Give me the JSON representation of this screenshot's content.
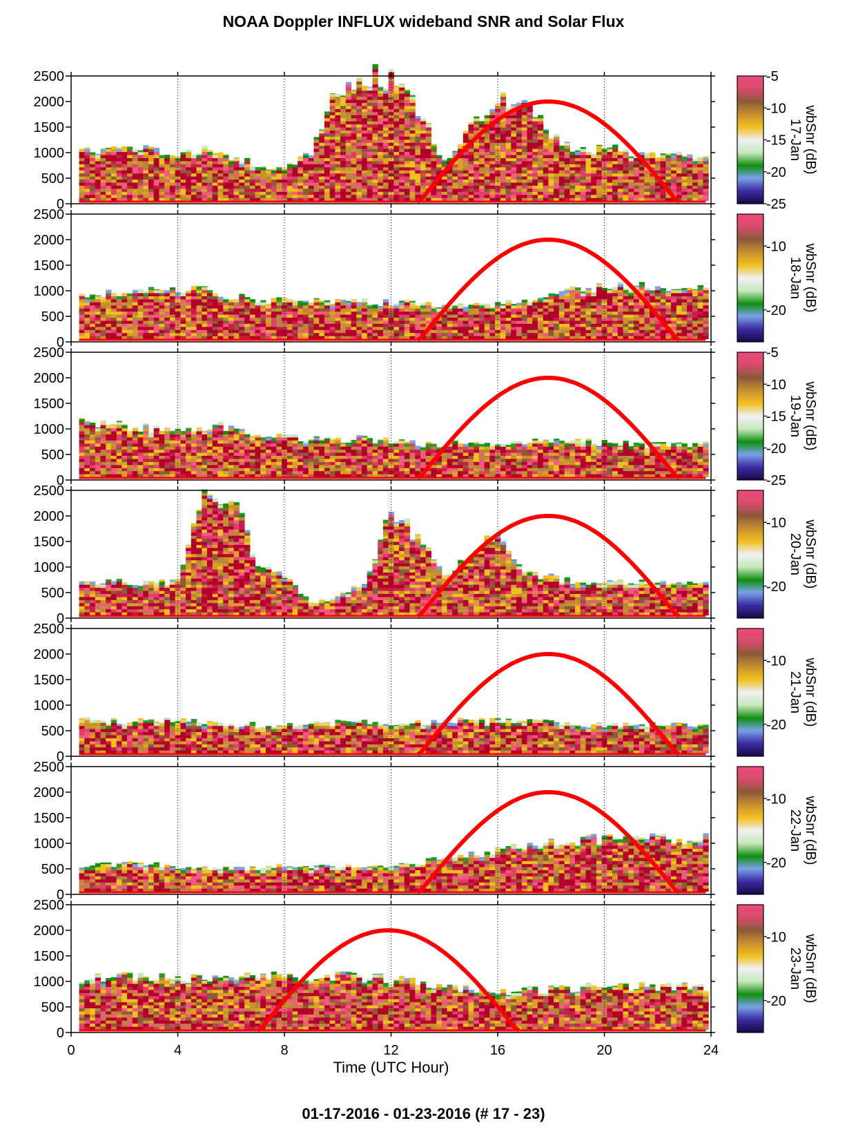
{
  "title": "NOAA Doppler INFLUX wideband SNR and Solar Flux",
  "footer": "01-17-2016 - 01-23-2016   (# 17 - 23)",
  "colors": {
    "solar": "#ff0000",
    "snr_strong": "#b3002a",
    "colorbar_stops": [
      "#1a0a4a",
      "#3a2aa0",
      "#7aa0e8",
      "#109010",
      "#c8e8c0",
      "#f0f0f0",
      "#f0c020",
      "#c89030",
      "#8a5a3a",
      "#d84a6a",
      "#f04a78"
    ]
  },
  "chart_data": [
    {
      "type": "heatmap",
      "day_label": "17-Jan",
      "colorbar_title": "wbSnr (dB)",
      "colorbar_ticks": [
        -5,
        -10,
        -15,
        -20,
        -25
      ],
      "x_ticks": [
        0,
        4,
        8,
        12,
        16,
        20,
        24
      ],
      "y_ticks": [
        0,
        500,
        1000,
        1500,
        2000,
        2500
      ],
      "xlim": [
        0,
        24
      ],
      "ylim": [
        0,
        2500
      ],
      "solar_peak_hour": 17.9,
      "solar_start": 13.0,
      "solar_end": 22.8,
      "solar_peak": 2000,
      "snr_top": [
        [
          0.3,
          1050
        ],
        [
          1,
          1000
        ],
        [
          2,
          1080
        ],
        [
          3,
          1050
        ],
        [
          4,
          1000
        ],
        [
          5,
          1100
        ],
        [
          6,
          950
        ],
        [
          7,
          750
        ],
        [
          8,
          680
        ],
        [
          9,
          1000
        ],
        [
          10,
          2300
        ],
        [
          11,
          2500
        ],
        [
          12,
          2500
        ],
        [
          13,
          1900
        ],
        [
          14,
          800
        ],
        [
          15,
          1500
        ],
        [
          16,
          2000
        ],
        [
          17,
          2100
        ],
        [
          18,
          1300
        ],
        [
          19,
          1000
        ],
        [
          20,
          1100
        ],
        [
          21,
          1000
        ],
        [
          22,
          980
        ],
        [
          23.8,
          900
        ]
      ]
    },
    {
      "type": "heatmap",
      "day_label": "18-Jan",
      "colorbar_title": "wbSnr (dB)",
      "colorbar_ticks": [
        -10,
        -20
      ],
      "x_ticks": [
        0,
        4,
        8,
        12,
        16,
        20,
        24
      ],
      "y_ticks": [
        0,
        500,
        1000,
        1500,
        2000,
        2500
      ],
      "xlim": [
        0,
        24
      ],
      "ylim": [
        0,
        2500
      ],
      "solar_peak_hour": 17.9,
      "solar_start": 13.0,
      "solar_end": 22.8,
      "solar_peak": 2000,
      "snr_top": [
        [
          0.3,
          950
        ],
        [
          2,
          950
        ],
        [
          3,
          1050
        ],
        [
          5,
          1000
        ],
        [
          7,
          800
        ],
        [
          9,
          800
        ],
        [
          11,
          780
        ],
        [
          13,
          750
        ],
        [
          15,
          700
        ],
        [
          17,
          800
        ],
        [
          19,
          1050
        ],
        [
          21,
          1100
        ],
        [
          23.8,
          1050
        ]
      ]
    },
    {
      "type": "heatmap",
      "day_label": "19-Jan",
      "colorbar_title": "wbSnr (dB)",
      "colorbar_ticks": [
        -5,
        -10,
        -15,
        -20,
        -25
      ],
      "x_ticks": [
        0,
        4,
        8,
        12,
        16,
        20,
        24
      ],
      "y_ticks": [
        0,
        500,
        1000,
        1500,
        2000,
        2500
      ],
      "xlim": [
        0,
        24
      ],
      "ylim": [
        0,
        2500
      ],
      "solar_peak_hour": 17.9,
      "solar_start": 13.0,
      "solar_end": 22.8,
      "solar_peak": 2000,
      "snr_top": [
        [
          0.3,
          1150
        ],
        [
          2,
          1050
        ],
        [
          4,
          1000
        ],
        [
          6,
          1050
        ],
        [
          7,
          900
        ],
        [
          9,
          800
        ],
        [
          11,
          800
        ],
        [
          13,
          700
        ],
        [
          15,
          700
        ],
        [
          17,
          750
        ],
        [
          19,
          750
        ],
        [
          21,
          700
        ],
        [
          23.8,
          700
        ]
      ]
    },
    {
      "type": "heatmap",
      "day_label": "20-Jan",
      "colorbar_title": "wbSnr (dB)",
      "colorbar_ticks": [
        -10,
        -20
      ],
      "x_ticks": [
        0,
        4,
        8,
        12,
        16,
        20,
        24
      ],
      "y_ticks": [
        0,
        500,
        1000,
        1500,
        2000,
        2500
      ],
      "xlim": [
        0,
        24
      ],
      "ylim": [
        0,
        2500
      ],
      "solar_peak_hour": 17.9,
      "solar_start": 13.0,
      "solar_end": 22.8,
      "solar_peak": 2000,
      "snr_top": [
        [
          0.3,
          700
        ],
        [
          2,
          700
        ],
        [
          4,
          700
        ],
        [
          5,
          2500
        ],
        [
          6,
          2400
        ],
        [
          7,
          1100
        ],
        [
          8,
          800
        ],
        [
          9,
          300
        ],
        [
          10,
          400
        ],
        [
          11,
          700
        ],
        [
          12,
          2100
        ],
        [
          13,
          1600
        ],
        [
          14,
          850
        ],
        [
          16,
          1700
        ],
        [
          17,
          900
        ],
        [
          19,
          700
        ],
        [
          21,
          700
        ],
        [
          23.8,
          650
        ]
      ]
    },
    {
      "type": "heatmap",
      "day_label": "21-Jan",
      "colorbar_title": "wbSnr (dB)",
      "colorbar_ticks": [
        -10,
        -20
      ],
      "x_ticks": [
        0,
        4,
        8,
        12,
        16,
        20,
        24
      ],
      "y_ticks": [
        0,
        500,
        1000,
        1500,
        2000,
        2500
      ],
      "xlim": [
        0,
        24
      ],
      "ylim": [
        0,
        2500
      ],
      "solar_peak_hour": 17.9,
      "solar_start": 13.0,
      "solar_end": 22.8,
      "solar_peak": 2000,
      "snr_top": [
        [
          0.3,
          700
        ],
        [
          2,
          680
        ],
        [
          4,
          700
        ],
        [
          6,
          620
        ],
        [
          8,
          600
        ],
        [
          10,
          650
        ],
        [
          12,
          650
        ],
        [
          14,
          700
        ],
        [
          16,
          700
        ],
        [
          18,
          650
        ],
        [
          20,
          600
        ],
        [
          22,
          620
        ],
        [
          23.8,
          600
        ]
      ]
    },
    {
      "type": "heatmap",
      "day_label": "22-Jan",
      "colorbar_title": "wbSnr (dB)",
      "colorbar_ticks": [
        -10,
        -20
      ],
      "x_ticks": [
        0,
        4,
        8,
        12,
        16,
        20,
        24
      ],
      "y_ticks": [
        0,
        500,
        1000,
        1500,
        2000,
        2500
      ],
      "xlim": [
        0,
        24
      ],
      "ylim": [
        0,
        2500
      ],
      "solar_peak_hour": 17.9,
      "solar_start": 13.0,
      "solar_end": 22.8,
      "solar_peak": 2000,
      "snr_top": [
        [
          0.3,
          550
        ],
        [
          2,
          600
        ],
        [
          4,
          550
        ],
        [
          6,
          500
        ],
        [
          8,
          550
        ],
        [
          10,
          550
        ],
        [
          12,
          550
        ],
        [
          14,
          700
        ],
        [
          16,
          850
        ],
        [
          18,
          1000
        ],
        [
          20,
          1100
        ],
        [
          22,
          1100
        ],
        [
          23.8,
          1100
        ]
      ]
    },
    {
      "type": "heatmap",
      "day_label": "23-Jan",
      "colorbar_title": "wbSnr (dB)",
      "colorbar_ticks": [
        -10,
        -20
      ],
      "x_ticks": [
        0,
        4,
        8,
        12,
        16,
        20,
        24
      ],
      "y_ticks": [
        0,
        500,
        1000,
        1500,
        2000,
        2500
      ],
      "xlim": [
        0,
        24
      ],
      "ylim": [
        0,
        2500
      ],
      "solar_peak_hour": 11.9,
      "solar_start": 7.0,
      "solar_end": 16.8,
      "solar_peak": 2000,
      "snr_top": [
        [
          0.3,
          1050
        ],
        [
          2,
          1100
        ],
        [
          4,
          1050
        ],
        [
          6,
          1150
        ],
        [
          8,
          1100
        ],
        [
          10,
          1100
        ],
        [
          12,
          1050
        ],
        [
          14,
          900
        ],
        [
          16,
          800
        ],
        [
          18,
          850
        ],
        [
          20,
          900
        ],
        [
          22,
          900
        ],
        [
          23.8,
          900
        ]
      ]
    }
  ],
  "xlabel": "Time (UTC Hour)"
}
